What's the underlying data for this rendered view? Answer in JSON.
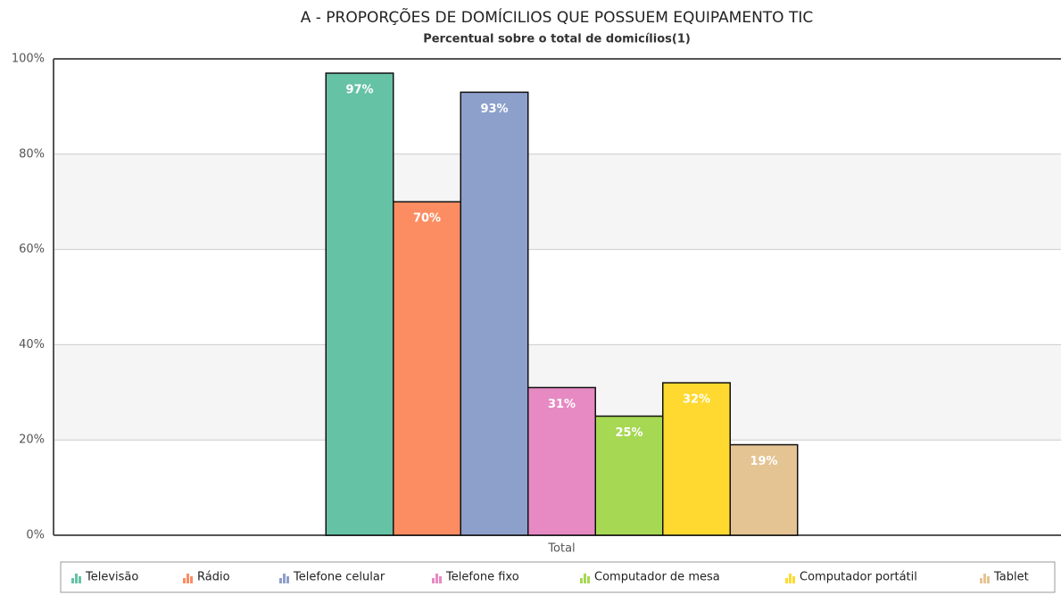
{
  "chart_data": {
    "type": "bar",
    "title": "A - PROPORÇÕES DE DOMÍCILIOS QUE POSSUEM EQUIPAMENTO TIC",
    "subtitle": "Percentual sobre o total de domicílios(1)",
    "categories": [
      "Total"
    ],
    "series": [
      {
        "name": "Televisão",
        "color": "#66c2a5",
        "values": [
          97
        ],
        "value_labels": [
          "97%"
        ]
      },
      {
        "name": "Rádio",
        "color": "#fc8d62",
        "values": [
          70
        ],
        "value_labels": [
          "70%"
        ]
      },
      {
        "name": "Telefone celular",
        "color": "#8da0cb",
        "values": [
          93
        ],
        "value_labels": [
          "93%"
        ]
      },
      {
        "name": "Telefone fixo",
        "color": "#e78ac3",
        "values": [
          31
        ],
        "value_labels": [
          "31%"
        ]
      },
      {
        "name": "Computador de mesa",
        "color": "#a6d854",
        "values": [
          25
        ],
        "value_labels": [
          "25%"
        ]
      },
      {
        "name": "Computador portátil",
        "color": "#ffd92f",
        "values": [
          32
        ],
        "value_labels": [
          "32%"
        ]
      },
      {
        "name": "Tablet",
        "color": "#e5c494",
        "values": [
          19
        ],
        "value_labels": [
          "19%"
        ]
      }
    ],
    "ylim": [
      0,
      100
    ],
    "yticks": [
      {
        "value": 0,
        "label": "0%"
      },
      {
        "value": 20,
        "label": "20%"
      },
      {
        "value": 40,
        "label": "40%"
      },
      {
        "value": 60,
        "label": "60%"
      },
      {
        "value": 80,
        "label": "80%"
      },
      {
        "value": 100,
        "label": "100%"
      }
    ],
    "grid": true,
    "legend": "bottom"
  }
}
